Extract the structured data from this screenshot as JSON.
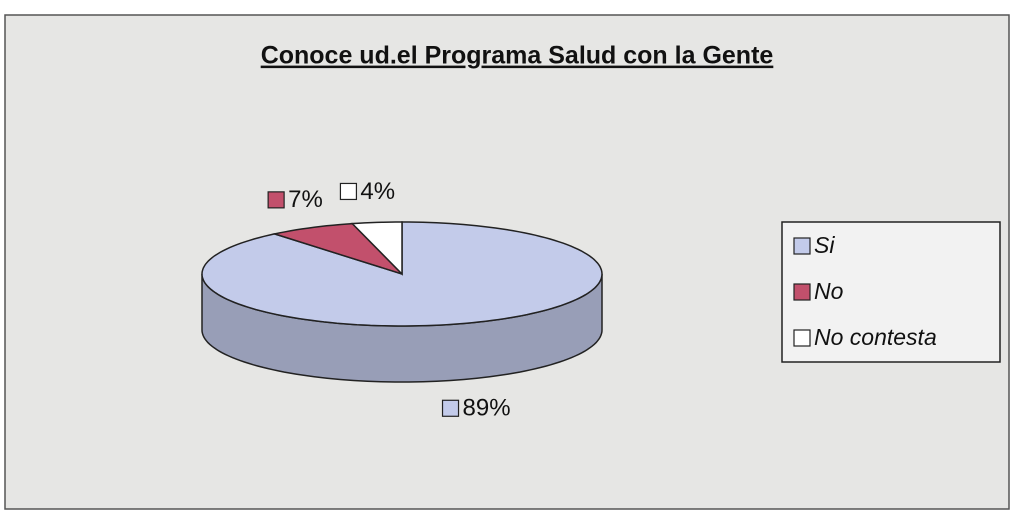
{
  "chart_data": {
    "type": "pie",
    "title": "Conoce ud.el Programa Salud con la Gente",
    "categories": [
      "Si",
      "No",
      "No contesta"
    ],
    "values": [
      89,
      7,
      4
    ],
    "value_labels": [
      "89%",
      "7%",
      "4%"
    ],
    "colors": [
      "#c3cbea",
      "#c2506c",
      "#ffffff"
    ],
    "legend": "right"
  }
}
